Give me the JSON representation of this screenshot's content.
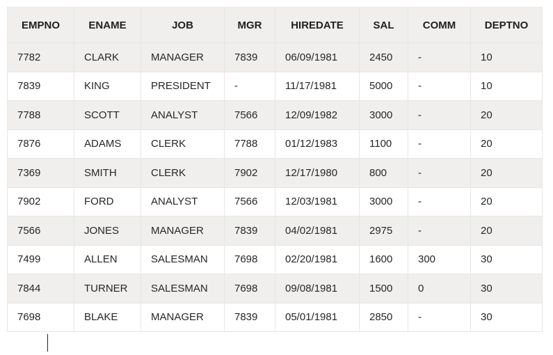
{
  "table": {
    "columns": [
      "EMPNO",
      "ENAME",
      "JOB",
      "MGR",
      "HIREDATE",
      "SAL",
      "COMM",
      "DEPTNO"
    ],
    "rows": [
      [
        "7782",
        "CLARK",
        "MANAGER",
        "7839",
        "06/09/1981",
        "2450",
        "-",
        "10"
      ],
      [
        "7839",
        "KING",
        "PRESIDENT",
        "-",
        "11/17/1981",
        "5000",
        "-",
        "10"
      ],
      [
        "7788",
        "SCOTT",
        "ANALYST",
        "7566",
        "12/09/1982",
        "3000",
        "-",
        "20"
      ],
      [
        "7876",
        "ADAMS",
        "CLERK",
        "7788",
        "01/12/1983",
        "1100",
        "-",
        "20"
      ],
      [
        "7369",
        "SMITH",
        "CLERK",
        "7902",
        "12/17/1980",
        "800",
        "-",
        "20"
      ],
      [
        "7902",
        "FORD",
        "ANALYST",
        "7566",
        "12/03/1981",
        "3000",
        "-",
        "20"
      ],
      [
        "7566",
        "JONES",
        "MANAGER",
        "7839",
        "04/02/1981",
        "2975",
        "-",
        "20"
      ],
      [
        "7499",
        "ALLEN",
        "SALESMAN",
        "7698",
        "02/20/1981",
        "1600",
        "300",
        "30"
      ],
      [
        "7844",
        "TURNER",
        "SALESMAN",
        "7698",
        "09/08/1981",
        "1500",
        "0",
        "30"
      ],
      [
        "7698",
        "BLAKE",
        "MANAGER",
        "7839",
        "05/01/1981",
        "2850",
        "-",
        "30"
      ]
    ]
  }
}
